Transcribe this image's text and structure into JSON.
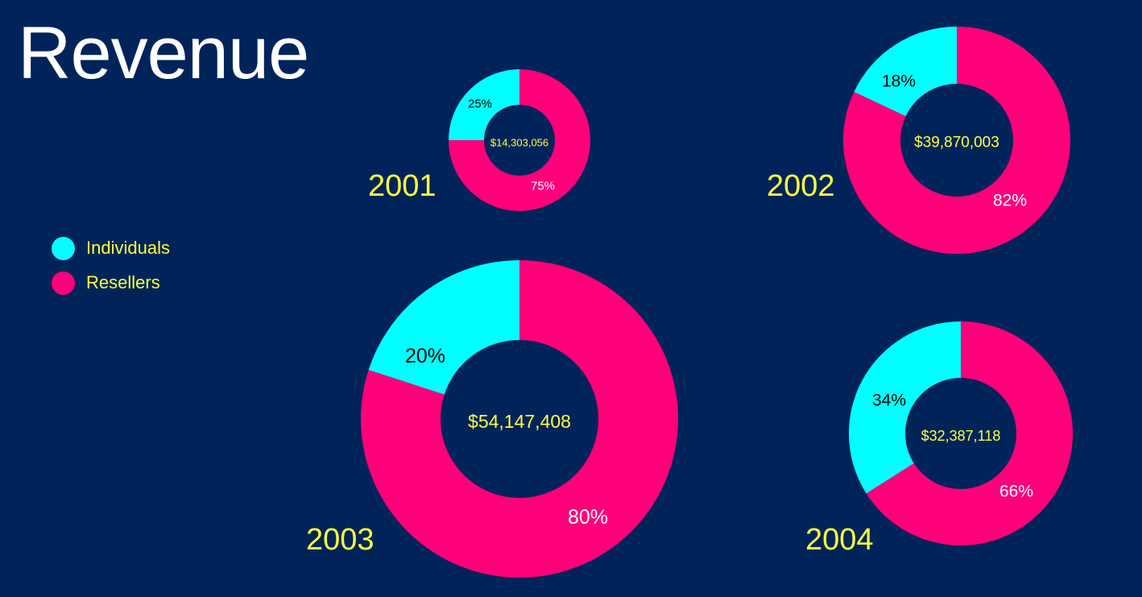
{
  "title": "Revenue",
  "colors": {
    "background": "#00245A",
    "individuals": "#00FFFF",
    "resellers": "#FF007A",
    "year_text": "#FFFF3D",
    "total_text": "#FFFF3D",
    "individuals_pct_text": "#000000",
    "resellers_pct_text": "#FFFFFF"
  },
  "legend": [
    {
      "label": "Individuals",
      "color": "#00FFFF"
    },
    {
      "label": "Resellers",
      "color": "#FF007A"
    }
  ],
  "chart_data": {
    "type": "pie",
    "variant": "donut",
    "title": "Revenue",
    "series_names": [
      "Individuals",
      "Resellers"
    ],
    "legend_position": "left",
    "charts": [
      {
        "year": "2001",
        "total": 14303056,
        "total_label": "$14,303,056",
        "shares": [
          25,
          75
        ],
        "share_labels": [
          "25%",
          "75%"
        ]
      },
      {
        "year": "2002",
        "total": 39870003,
        "total_label": "$39,870,003",
        "shares": [
          18,
          82
        ],
        "share_labels": [
          "18%",
          "82%"
        ]
      },
      {
        "year": "2003",
        "total": 54147408,
        "total_label": "$54,147,408",
        "shares": [
          20,
          80
        ],
        "share_labels": [
          "20%",
          "80%"
        ]
      },
      {
        "year": "2004",
        "total": 32387118,
        "total_label": "$32,387,118",
        "shares": [
          34,
          66
        ],
        "share_labels": [
          "34%",
          "66%"
        ]
      }
    ]
  }
}
